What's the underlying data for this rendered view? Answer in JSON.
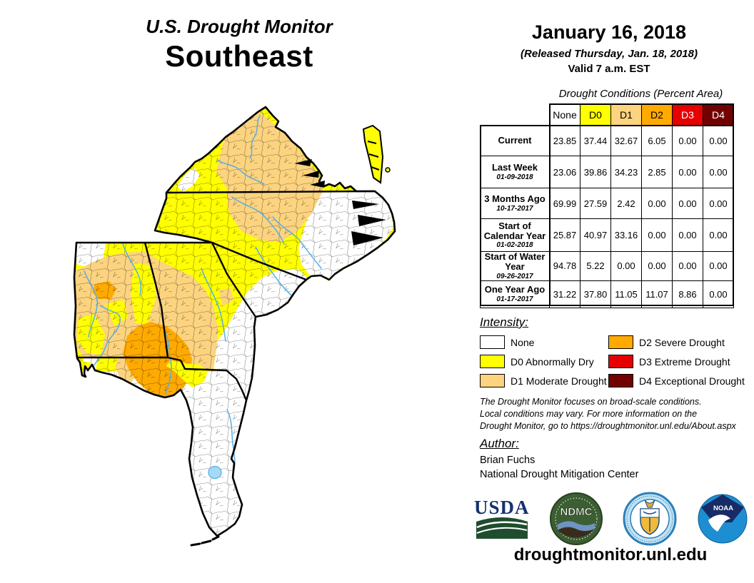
{
  "title": {
    "line1": "U.S. Drought Monitor",
    "line2": "Southeast"
  },
  "date_block": {
    "date": "January 16, 2018",
    "released": "(Released Thursday, Jan. 18, 2018)",
    "valid": "Valid 7 a.m. EST"
  },
  "table": {
    "caption": "Drought Conditions (Percent Area)",
    "columns": [
      {
        "label": "None",
        "bg": "#FFFFFF",
        "fg": "#000000"
      },
      {
        "label": "D0",
        "bg": "#FFFF00",
        "fg": "#000000"
      },
      {
        "label": "D1",
        "bg": "#FCD37F",
        "fg": "#000000"
      },
      {
        "label": "D2",
        "bg": "#FFAA00",
        "fg": "#000000"
      },
      {
        "label": "D3",
        "bg": "#E60000",
        "fg": "#FFFFFF"
      },
      {
        "label": "D4",
        "bg": "#730000",
        "fg": "#FFFFFF"
      }
    ],
    "rows": [
      {
        "label": "Current",
        "sublabel": "",
        "values": [
          "23.85",
          "37.44",
          "32.67",
          "6.05",
          "0.00",
          "0.00"
        ]
      },
      {
        "label": "Last Week",
        "sublabel": "01-09-2018",
        "values": [
          "23.06",
          "39.86",
          "34.23",
          "2.85",
          "0.00",
          "0.00"
        ]
      },
      {
        "label": "3 Months Ago",
        "sublabel": "10-17-2017",
        "values": [
          "69.99",
          "27.59",
          "2.42",
          "0.00",
          "0.00",
          "0.00"
        ]
      },
      {
        "label": "Start of Calendar Year",
        "sublabel": "01-02-2018",
        "values": [
          "25.87",
          "40.97",
          "33.16",
          "0.00",
          "0.00",
          "0.00"
        ]
      },
      {
        "label": "Start of Water Year",
        "sublabel": "09-26-2017",
        "values": [
          "94.78",
          "5.22",
          "0.00",
          "0.00",
          "0.00",
          "0.00"
        ]
      },
      {
        "label": "One Year Ago",
        "sublabel": "01-17-2017",
        "values": [
          "31.22",
          "37.80",
          "11.05",
          "11.07",
          "8.86",
          "0.00"
        ]
      }
    ]
  },
  "legend": {
    "heading": "Intensity:",
    "items": [
      {
        "label": "None",
        "color": "#FFFFFF"
      },
      {
        "label": "D0 Abnormally Dry",
        "color": "#FFFF00"
      },
      {
        "label": "D1 Moderate Drought",
        "color": "#FCD37F"
      },
      {
        "label": "D2 Severe Drought",
        "color": "#FFAA00"
      },
      {
        "label": "D3 Extreme Drought",
        "color": "#E60000"
      },
      {
        "label": "D4 Exceptional Drought",
        "color": "#730000"
      }
    ]
  },
  "disclaimer": {
    "lines": [
      "The Drought Monitor focuses on broad-scale conditions.",
      "Local conditions may vary. For more information on the",
      "Drought Monitor, go to https://droughtmonitor.unl.edu/About.aspx"
    ]
  },
  "author": {
    "heading": "Author:",
    "name": "Brian Fuchs",
    "org": "National Drought Mitigation Center"
  },
  "logos": {
    "usda": "USDA",
    "ndmc": "NDMC",
    "noaa": "NOAA"
  },
  "footer": {
    "url": "droughtmonitor.unl.edu"
  },
  "map": {
    "region": "Southeast",
    "states_shown": [
      "Virginia",
      "North Carolina",
      "South Carolina",
      "Georgia",
      "Alabama",
      "Florida"
    ],
    "palette": {
      "none": "#FFFFFF",
      "d0": "#FFFF00",
      "d1": "#FCD37F",
      "d2": "#FFAA00",
      "d3": "#E60000",
      "d4": "#730000",
      "river": "#55aee8",
      "lake": "#a6daf4"
    }
  }
}
